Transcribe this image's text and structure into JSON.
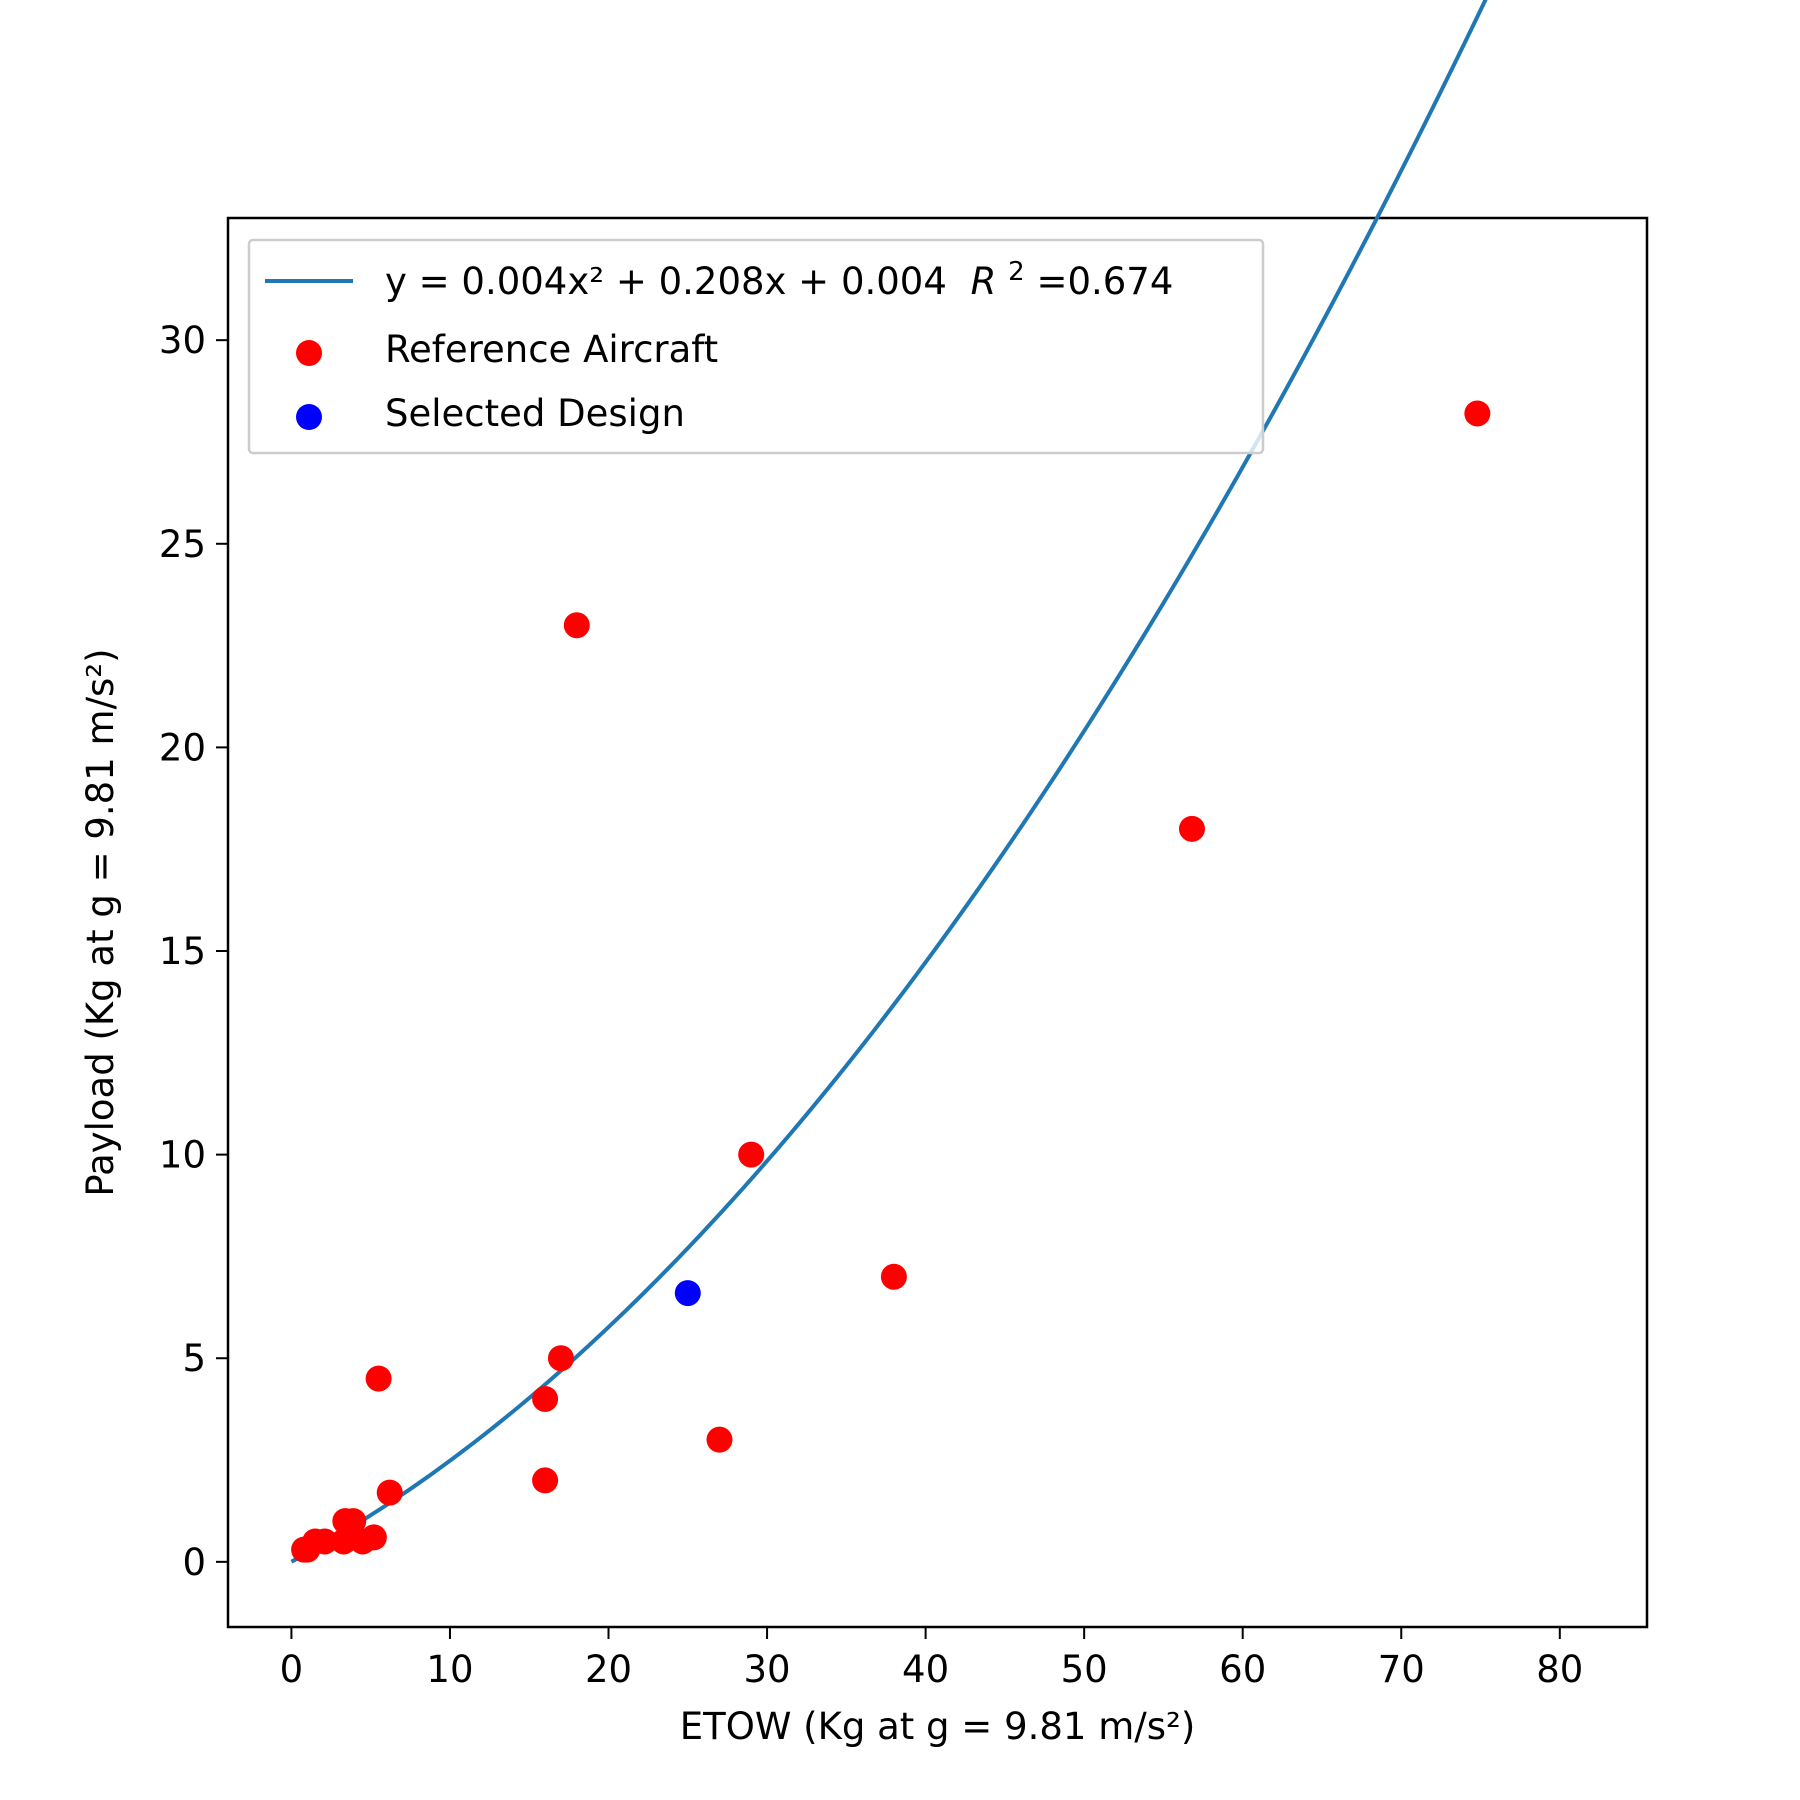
{
  "chart_data": {
    "type": "scatter",
    "title": "",
    "xlabel": "ETOW (Kg at g = 9.81 m/s²)",
    "ylabel": "Payload (Kg at g = 9.81 m/s²)",
    "xlim": [
      -4,
      85.5
    ],
    "ylim": [
      -1.6,
      33
    ],
    "xticks": [
      0,
      10,
      20,
      30,
      40,
      50,
      60,
      70,
      80
    ],
    "yticks": [
      0,
      5,
      10,
      15,
      20,
      25,
      30
    ],
    "grid": false,
    "legend_position": "top-left",
    "fit_line": {
      "name": "y = 0.004x² + 0.208x + 0.004",
      "r2_text": "=0.674",
      "color": "#1f77b4",
      "coefficients": {
        "a": 0.004,
        "b": 0.208,
        "c": 0.004
      },
      "x_range": [
        0,
        81.5
      ]
    },
    "series": [
      {
        "name": "Reference Aircraft",
        "color": "#ff0000",
        "points": [
          {
            "x": 0.8,
            "y": 0.3
          },
          {
            "x": 1.0,
            "y": 0.3
          },
          {
            "x": 1.5,
            "y": 0.5
          },
          {
            "x": 2.1,
            "y": 0.5
          },
          {
            "x": 3.3,
            "y": 0.5
          },
          {
            "x": 3.4,
            "y": 1.0
          },
          {
            "x": 3.9,
            "y": 1.0
          },
          {
            "x": 4.5,
            "y": 0.5
          },
          {
            "x": 5.2,
            "y": 0.6
          },
          {
            "x": 5.5,
            "y": 4.5
          },
          {
            "x": 6.2,
            "y": 1.7
          },
          {
            "x": 16.0,
            "y": 4.0
          },
          {
            "x": 16.0,
            "y": 2.0
          },
          {
            "x": 17.0,
            "y": 5.0
          },
          {
            "x": 18.0,
            "y": 23.0
          },
          {
            "x": 27.0,
            "y": 3.0
          },
          {
            "x": 29.0,
            "y": 10.0
          },
          {
            "x": 38.0,
            "y": 7.0
          },
          {
            "x": 56.8,
            "y": 18.0
          },
          {
            "x": 74.8,
            "y": 28.2
          }
        ]
      },
      {
        "name": "Selected Design",
        "color": "#0000ff",
        "points": [
          {
            "x": 25.0,
            "y": 6.6
          }
        ]
      }
    ]
  }
}
